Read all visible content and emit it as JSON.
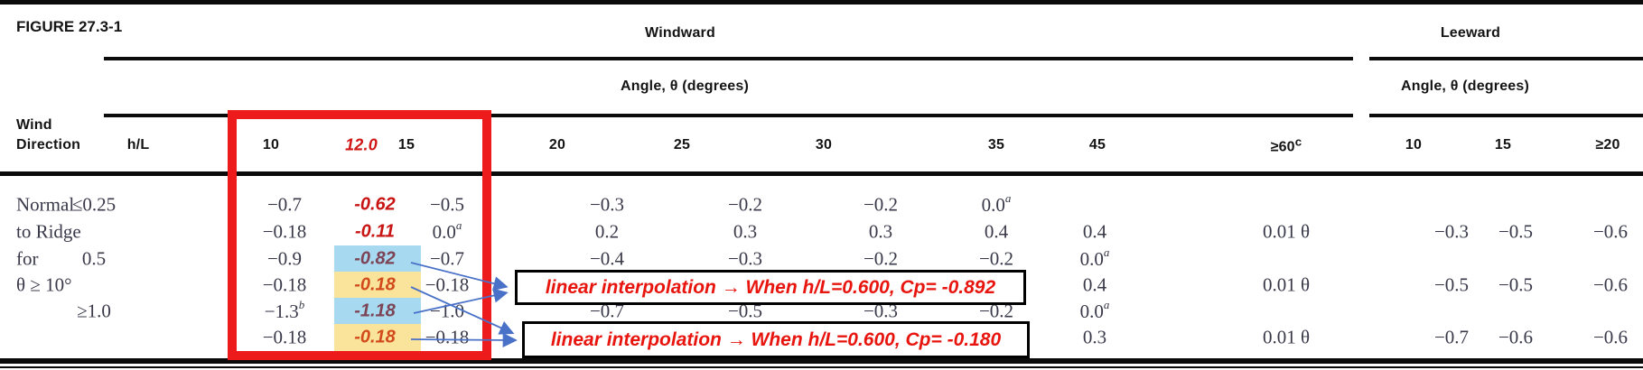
{
  "figure_label": "FIGURE 27.3-1",
  "header": {
    "windward": "Windward",
    "leeward": "Leeward",
    "angle_label_windward": "Angle, θ (degrees)",
    "angle_label_leeward": "Angle, θ (degrees)",
    "wind_direction_line1": "Wind",
    "wind_direction_line2": "Direction",
    "hl_label": "h/L"
  },
  "table": {
    "columns": [
      {
        "label": "10"
      },
      {
        "label": "12.0",
        "style": "red"
      },
      {
        "label": "15"
      },
      {
        "label": "20"
      },
      {
        "label": "25"
      },
      {
        "label": "30"
      },
      {
        "label": "35"
      },
      {
        "label": "45"
      },
      {
        "label": "≥60",
        "sup": "c"
      },
      {
        "label": "10"
      },
      {
        "label": "15"
      },
      {
        "label": "≥20"
      }
    ],
    "wind_direction_lines": [
      "Normal",
      "to Ridge",
      "for",
      "θ ≥ 10°"
    ],
    "hl_values": [
      {
        "row": 0,
        "text": "≤0.25"
      },
      {
        "row": 2,
        "text": "0.5"
      },
      {
        "row": 4,
        "text": "≥1.0"
      }
    ],
    "rows": [
      {
        "cells": [
          "−0.7",
          {
            "v": "-0.62",
            "style": "bright"
          },
          "−0.5",
          "−0.3",
          "−0.2",
          "−0.2",
          {
            "v": "0.0",
            "sup": "a"
          },
          "",
          "",
          "",
          "",
          ""
        ]
      },
      {
        "cells": [
          "−0.18",
          {
            "v": "-0.11",
            "style": "bright"
          },
          {
            "v": "0.0",
            "sup": "a"
          },
          "0.2",
          "0.3",
          "0.3",
          "0.4",
          "0.4",
          "0.01 θ",
          "−0.3",
          "−0.5",
          "−0.6"
        ]
      },
      {
        "cells": [
          "−0.9",
          {
            "v": "-0.82",
            "style": "plum",
            "bg": "blue"
          },
          "−0.7",
          "−0.4",
          "−0.3",
          "−0.2",
          "−0.2",
          {
            "v": "0.0",
            "sup": "a"
          },
          "",
          "",
          "",
          ""
        ]
      },
      {
        "cells": [
          "−0.18",
          {
            "v": "-0.18",
            "style": "orange",
            "bg": "yellow"
          },
          "−0.18",
          "",
          "",
          "",
          "",
          "0.4",
          "0.01 θ",
          "−0.5",
          "−0.5",
          "−0.6"
        ]
      },
      {
        "cells": [
          {
            "v": "−1.3",
            "sup": "b"
          },
          {
            "v": "-1.18",
            "style": "plum",
            "bg": "blue"
          },
          "−1.0",
          "−0.7",
          "−0.5",
          "−0.3",
          "−0.2",
          {
            "v": "0.0",
            "sup": "a"
          },
          "",
          "",
          "",
          ""
        ]
      },
      {
        "cells": [
          "−0.18",
          {
            "v": "-0.18",
            "style": "orange",
            "bg": "yellow"
          },
          "−0.18",
          "",
          "",
          "",
          "",
          "0.3",
          "0.01 θ",
          "−0.7",
          "−0.6",
          "−0.6"
        ]
      }
    ]
  },
  "annotations": [
    {
      "text": "linear interpolation  → When h/L=0.600, Cp= -0.892"
    },
    {
      "text": "linear interpolation  → When h/L=0.600, Cp= -0.180"
    }
  ],
  "colors": {
    "box_red": "#ed1b1b",
    "annotation_red": "#e8150f",
    "interp_bright_red": "#c91414",
    "interp_plum": "#7d4456",
    "interp_orange": "#d24b1c",
    "highlight_blue": "#a7daf0",
    "highlight_yellow": "#fae49b",
    "arrow_blue": "#4a71c8",
    "header_red": "#d01616",
    "data_ink": "#39394a",
    "rule_ink": "#0b0b0b"
  }
}
